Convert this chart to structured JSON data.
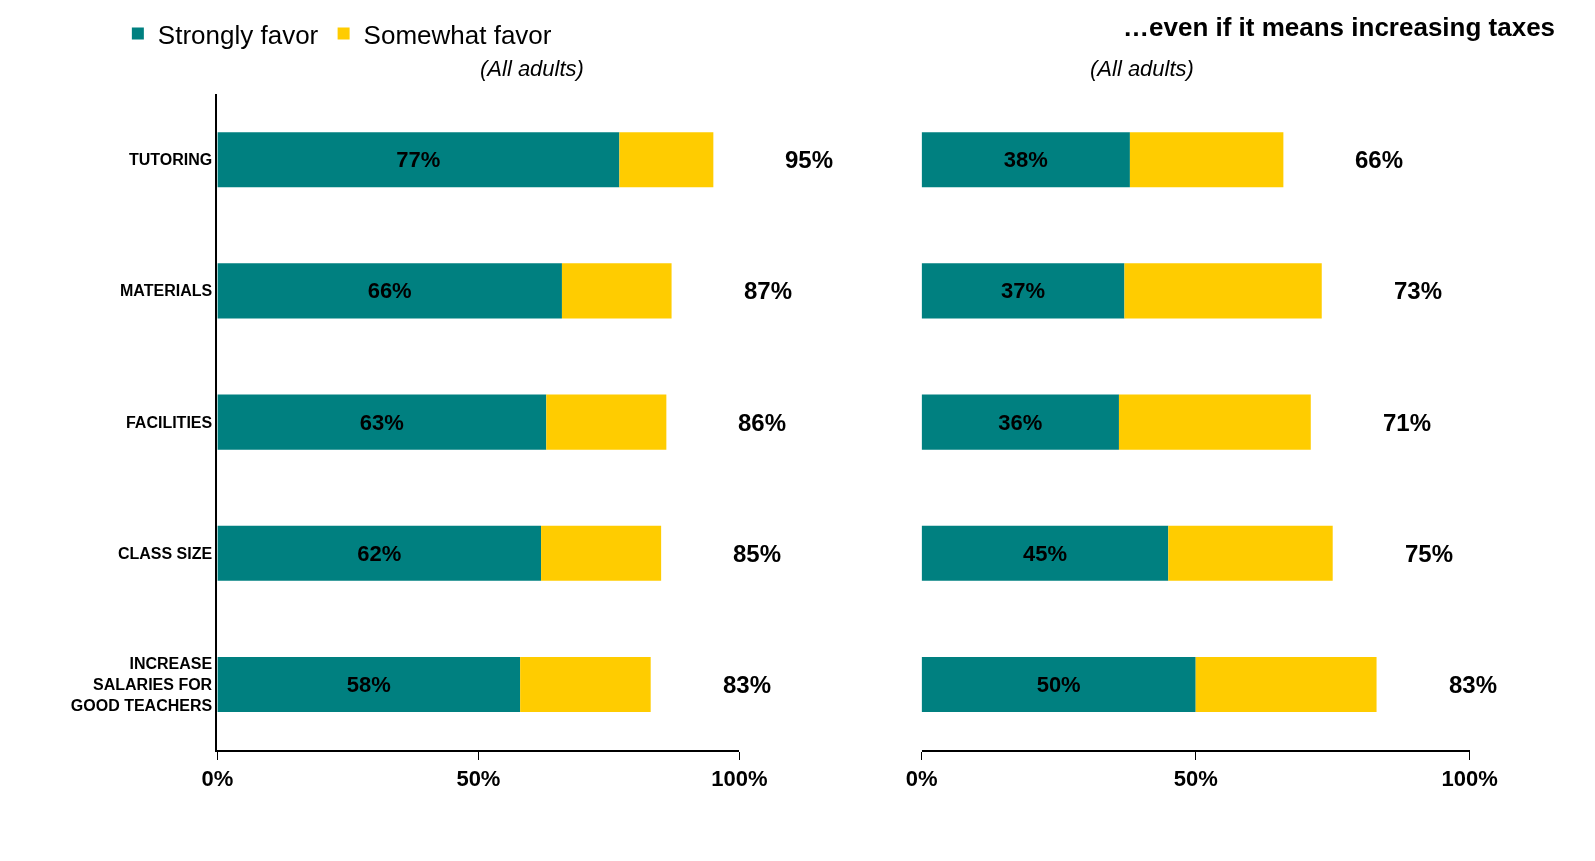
{
  "chart_data": [
    {
      "type": "bar",
      "orientation": "horizontal",
      "stacked": true,
      "subtitle": "(All adults)",
      "categories": [
        "TUTORING",
        "MATERIALS",
        "FACILITIES",
        "CLASS SIZE",
        "INCREASE SALARIES FOR GOOD TEACHERS"
      ],
      "series": [
        {
          "name": "Strongly favor",
          "color": "#008080",
          "values": [
            77,
            66,
            63,
            62,
            58
          ],
          "value_labels": [
            "77%",
            "66%",
            "63%",
            "62%",
            "58%"
          ]
        },
        {
          "name": "Somewhat favor",
          "color": "#ffcc00",
          "values": [
            18,
            21,
            23,
            23,
            25
          ]
        }
      ],
      "totals": [
        "95%",
        "87%",
        "86%",
        "85%",
        "83%"
      ],
      "xlim": [
        0,
        100
      ],
      "xticks": [
        {
          "value": 0,
          "label": "0%"
        },
        {
          "value": 50,
          "label": "50%"
        },
        {
          "value": 100,
          "label": "100%"
        }
      ],
      "legend": "top"
    },
    {
      "type": "bar",
      "orientation": "horizontal",
      "stacked": true,
      "title": "…even if it means increasing taxes",
      "subtitle": "(All adults)",
      "categories": [
        "TUTORING",
        "MATERIALS",
        "FACILITIES",
        "CLASS SIZE",
        "INCREASE SALARIES FOR GOOD TEACHERS"
      ],
      "series": [
        {
          "color": "#008080",
          "values": [
            38,
            37,
            36,
            45,
            50
          ],
          "value_labels": [
            "38%",
            "37%",
            "36%",
            "45%",
            "50%"
          ]
        },
        {
          "color": "#ffcc00",
          "values": [
            28,
            36,
            35,
            30,
            33
          ]
        }
      ],
      "totals": [
        "66%",
        "73%",
        "71%",
        "75%",
        "83%"
      ],
      "xlim": [
        0,
        100
      ],
      "xticks": [
        {
          "value": 0,
          "label": "0%"
        },
        {
          "value": 50,
          "label": "50%"
        },
        {
          "value": 100,
          "label": "100%"
        }
      ],
      "tick_labels": "x"
    }
  ]
}
